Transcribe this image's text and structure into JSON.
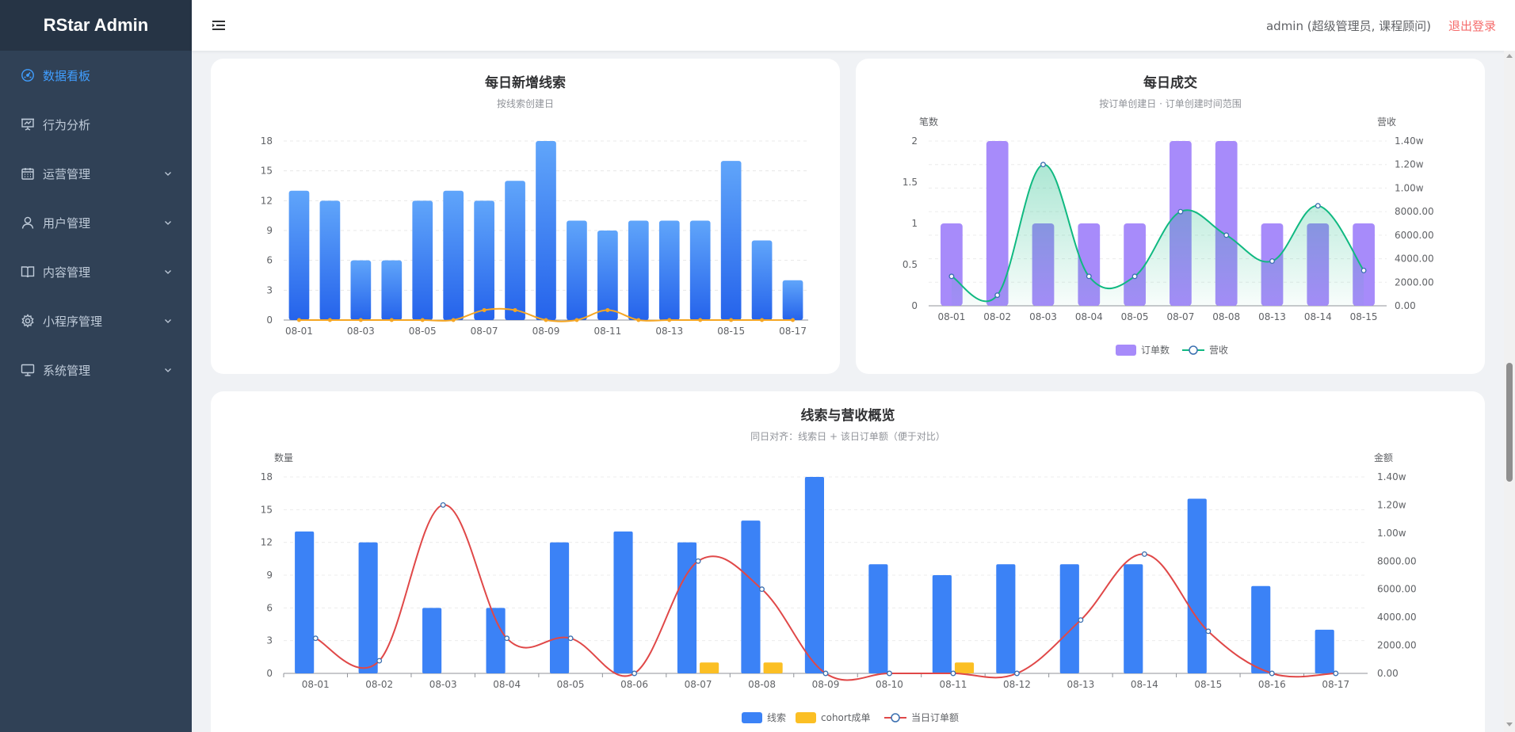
{
  "app": {
    "title": "RStar Admin"
  },
  "sidebar": {
    "items": [
      {
        "label": "数据看板",
        "icon": "dashboard-gauge-icon",
        "active": true,
        "expandable": false
      },
      {
        "label": "行为分析",
        "icon": "presentation-board-icon",
        "active": false,
        "expandable": false
      },
      {
        "label": "运营管理",
        "icon": "calendar-icon",
        "active": false,
        "expandable": true
      },
      {
        "label": "用户管理",
        "icon": "user-icon",
        "active": false,
        "expandable": true
      },
      {
        "label": "内容管理",
        "icon": "book-icon",
        "active": false,
        "expandable": true
      },
      {
        "label": "小程序管理",
        "icon": "gear-icon",
        "active": false,
        "expandable": true
      },
      {
        "label": "系统管理",
        "icon": "monitor-icon",
        "active": false,
        "expandable": true
      }
    ]
  },
  "header": {
    "user": "admin (超级管理员, 课程顾问)",
    "logout": "退出登录"
  },
  "colors": {
    "sidebar_bg": "#304156",
    "active": "#409eff",
    "bar_blue": "#3b82f6",
    "bar_yellow": "#fbbf24",
    "purple": "#a78bfa",
    "green": "#10b981",
    "red": "#e04848",
    "orange": "#f5a623"
  },
  "charts": {
    "daily_leads": {
      "title": "每日新增线索",
      "subtitle": "按线索创建日"
    },
    "daily_deals": {
      "title": "每日成交",
      "subtitle": "按订单创建日 · 订单创建时间范围",
      "y_left_label": "笔数",
      "y_right_label": "营收"
    },
    "overview": {
      "title": "线索与营收概览",
      "subtitle": "同日对齐：线索日 + 该日订单额（便于对比）",
      "y_left_label": "数量",
      "y_right_label": "金额"
    }
  },
  "chart_data": [
    {
      "type": "bar",
      "categories": [
        "08-01",
        "08-02",
        "08-03",
        "08-04",
        "08-05",
        "08-06",
        "08-07",
        "08-08",
        "08-09",
        "08-10",
        "08-11",
        "08-12",
        "08-13",
        "08-14",
        "08-15",
        "08-16",
        "08-17"
      ],
      "x_tick_labels": [
        "08-01",
        "08-03",
        "08-05",
        "08-07",
        "08-09",
        "08-11",
        "08-13",
        "08-15",
        "08-17"
      ],
      "series": [
        {
          "kind": "bar",
          "values": [
            13,
            12,
            6,
            6,
            12,
            13,
            12,
            14,
            18,
            10,
            9,
            10,
            10,
            10,
            16,
            8,
            4
          ]
        },
        {
          "kind": "line",
          "values": [
            0,
            0,
            0,
            0,
            0,
            0,
            1,
            1,
            0,
            0,
            1,
            0,
            0,
            0,
            0,
            0,
            0
          ]
        }
      ],
      "y_ticks": [
        "0",
        "3",
        "6",
        "9",
        "12",
        "15",
        "18"
      ],
      "ylim": [
        0,
        18
      ]
    },
    {
      "type": "bar",
      "categories": [
        "08-01",
        "08-02",
        "08-03",
        "08-04",
        "08-05",
        "08-07",
        "08-08",
        "08-13",
        "08-14",
        "08-15"
      ],
      "series": [
        {
          "name": "订单数",
          "kind": "bar",
          "axis": "left",
          "values": [
            1,
            2,
            1,
            1,
            1,
            2,
            2,
            1,
            1,
            1
          ]
        },
        {
          "name": "营收",
          "kind": "line",
          "axis": "right",
          "values": [
            2500,
            900,
            12000,
            2500,
            2500,
            8000,
            6000,
            3800,
            8500,
            3000
          ]
        }
      ],
      "y_left_ticks": [
        "0",
        "0.5",
        "1",
        "1.5",
        "2"
      ],
      "y_right_ticks": [
        "0.00",
        "2000.00",
        "4000.00",
        "6000.00",
        "8000.00",
        "1.00w",
        "1.20w",
        "1.40w"
      ],
      "ylim_left": [
        0,
        2
      ],
      "ylim_right": [
        0,
        14000
      ],
      "legend": "bottom"
    },
    {
      "type": "bar",
      "categories": [
        "08-01",
        "08-02",
        "08-03",
        "08-04",
        "08-05",
        "08-06",
        "08-07",
        "08-08",
        "08-09",
        "08-10",
        "08-11",
        "08-12",
        "08-13",
        "08-14",
        "08-15",
        "08-16",
        "08-17"
      ],
      "series": [
        {
          "name": "线索",
          "kind": "bar",
          "axis": "left",
          "values": [
            13,
            12,
            6,
            6,
            12,
            13,
            12,
            14,
            18,
            10,
            9,
            10,
            10,
            10,
            16,
            8,
            4
          ]
        },
        {
          "name": "cohort成单",
          "kind": "bar",
          "axis": "left",
          "values": [
            0,
            0,
            0,
            0,
            0,
            0,
            1,
            1,
            0,
            0,
            1,
            0,
            0,
            0,
            0,
            0,
            0
          ]
        },
        {
          "name": "当日订单额",
          "kind": "line",
          "axis": "right",
          "values": [
            2500,
            900,
            12000,
            2500,
            2500,
            0,
            8000,
            6000,
            0,
            0,
            0,
            0,
            3800,
            8500,
            3000,
            0,
            0
          ]
        }
      ],
      "y_left_ticks": [
        "0",
        "3",
        "6",
        "9",
        "12",
        "15",
        "18"
      ],
      "y_right_ticks": [
        "0.00",
        "2000.00",
        "4000.00",
        "6000.00",
        "8000.00",
        "1.00w",
        "1.20w",
        "1.40w"
      ],
      "ylim_left": [
        0,
        18
      ],
      "ylim_right": [
        0,
        14000
      ],
      "legend": "bottom"
    }
  ]
}
